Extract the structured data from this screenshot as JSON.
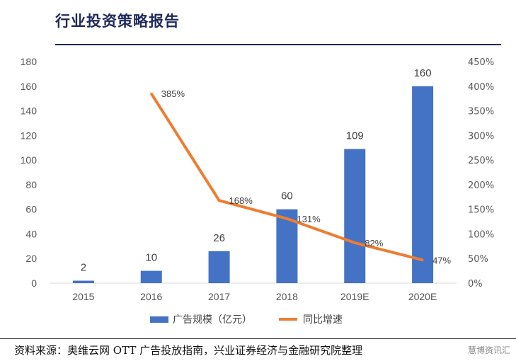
{
  "header": {
    "title": "行业投资策略报告"
  },
  "chart_data": {
    "type": "bar",
    "categories": [
      "2015",
      "2016",
      "2017",
      "2018",
      "2019E",
      "2020E"
    ],
    "series": [
      {
        "name": "广告规模（亿元）",
        "type": "bar",
        "axis": "left",
        "values": [
          2,
          10,
          26,
          60,
          109,
          160
        ],
        "color": "#4472c4"
      },
      {
        "name": "同比增速",
        "type": "line",
        "axis": "right",
        "values": [
          null,
          385,
          168,
          131,
          82,
          47
        ],
        "color": "#ed7d31"
      }
    ],
    "y_left": {
      "range": [
        0,
        180
      ],
      "ticks": [
        "0",
        "20",
        "40",
        "60",
        "80",
        "100",
        "120",
        "140",
        "160",
        "180"
      ]
    },
    "y_right": {
      "range": [
        0,
        450
      ],
      "ticks": [
        "0%",
        "50%",
        "100%",
        "150%",
        "200%",
        "250%",
        "300%",
        "350%",
        "400%",
        "450%"
      ]
    },
    "bar_labels": [
      "2",
      "10",
      "26",
      "60",
      "109",
      "160"
    ],
    "line_labels": [
      "",
      "385%",
      "168%",
      "131%",
      "82%",
      "47%"
    ],
    "legend_position": "bottom",
    "grid": false
  },
  "legend": {
    "bar_label": "广告规模（亿元）",
    "line_label": "同比增速"
  },
  "footer": {
    "source": "资料来源：奥维云网 OTT 广告投放指南，兴业证券经济与金融研究院整理",
    "watermark": "慧博资讯汇"
  }
}
